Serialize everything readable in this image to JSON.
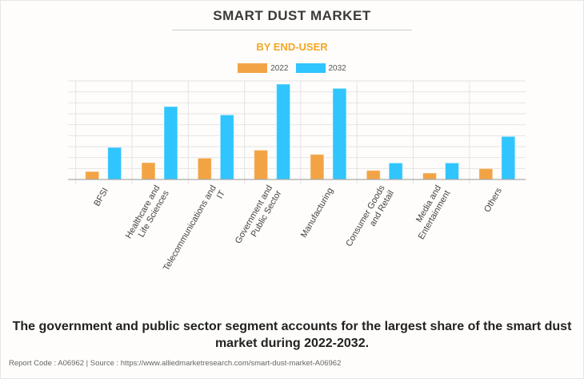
{
  "header": {
    "title": "SMART DUST MARKET",
    "subtitle": "BY END-USER"
  },
  "colors": {
    "series_2022": "#f2a445",
    "series_2032": "#30c5ff",
    "subtitle": "#f5a623",
    "grid": "#e4e4e4",
    "axis": "#aaaaaa"
  },
  "chart_data": {
    "type": "bar",
    "title": "SMART DUST MARKET",
    "subtitle": "BY END-USER",
    "xlabel": "",
    "ylabel": "",
    "y_units": "relative (gridline steps; no y-axis labels shown)",
    "ylim": [
      0,
      9
    ],
    "grid": true,
    "legend_position": "top-center",
    "categories": [
      "BFSI",
      "Healthcare and Life Sciences",
      "Telecommunications and IT",
      "Government and Public Sector",
      "Manufacturing",
      "Consumer Goods and Retail",
      "Media and Entertainment",
      "Others"
    ],
    "category_label_lines": [
      [
        "BFSI"
      ],
      [
        "Healthcare and",
        "Life Sciences"
      ],
      [
        "Telecommunications and",
        "IT"
      ],
      [
        "Government and",
        "Public Sector"
      ],
      [
        "Manufacturing"
      ],
      [
        "Consumer Goods",
        "and Retail"
      ],
      [
        "Media and",
        "Entertainment"
      ],
      [
        "Others"
      ]
    ],
    "series": [
      {
        "name": "2022",
        "values": [
          0.73,
          1.54,
          1.95,
          2.68,
          2.29,
          0.83,
          0.59,
          1.0
        ]
      },
      {
        "name": "2032",
        "values": [
          2.93,
          6.66,
          5.9,
          8.71,
          8.32,
          1.51,
          1.51,
          3.93
        ]
      }
    ]
  },
  "caption": {
    "line1": "The government and public sector segment accounts for the largest share of the smart dust",
    "line2": "market during 2022-2032."
  },
  "footer": {
    "text": "Report Code : A06962  |  Source : https://www.alliedmarketresearch.com/smart-dust-market-A06962"
  }
}
